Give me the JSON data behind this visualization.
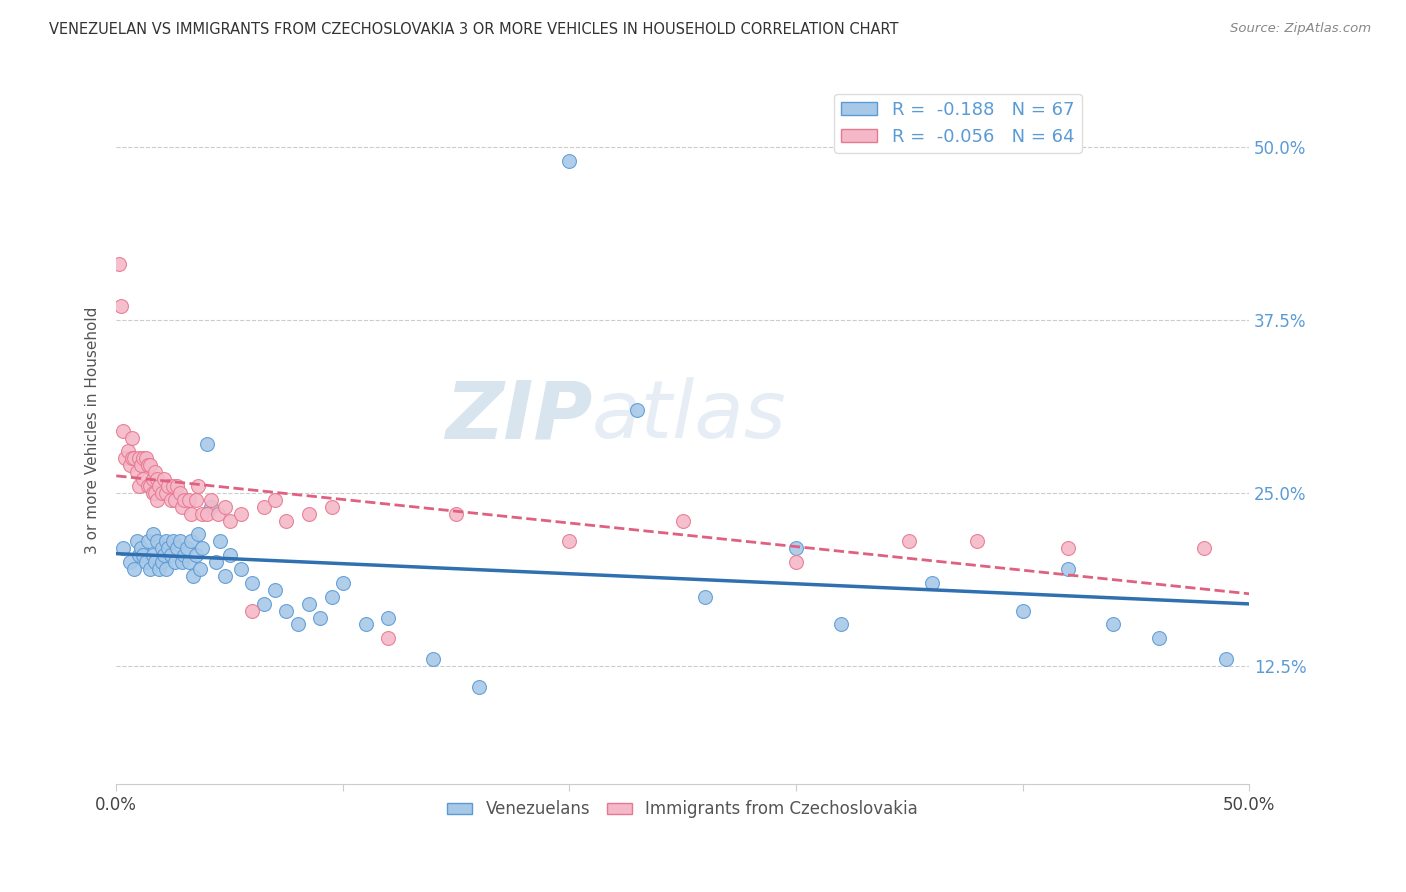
{
  "title": "VENEZUELAN VS IMMIGRANTS FROM CZECHOSLOVAKIA 3 OR MORE VEHICLES IN HOUSEHOLD CORRELATION CHART",
  "source": "Source: ZipAtlas.com",
  "ylabel": "3 or more Vehicles in Household",
  "ytick_labels": [
    "12.5%",
    "25.0%",
    "37.5%",
    "50.0%"
  ],
  "ytick_values": [
    0.125,
    0.25,
    0.375,
    0.5
  ],
  "xlim": [
    0.0,
    0.5
  ],
  "ylim": [
    0.04,
    0.55
  ],
  "legend_blue_R": "R =  -0.188",
  "legend_blue_N": "N = 67",
  "legend_pink_R": "R =  -0.056",
  "legend_pink_N": "N = 64",
  "legend_blue_label": "Venezuelans",
  "legend_pink_label": "Immigrants from Czechoslovakia",
  "blue_color": "#a8c8e8",
  "pink_color": "#f4b8c8",
  "blue_edge_color": "#5b9bd5",
  "pink_edge_color": "#e87890",
  "blue_line_color": "#3070b0",
  "pink_line_color": "#e06080",
  "watermark_zip": "ZIP",
  "watermark_atlas": "atlas",
  "venezuelan_x": [
    0.003,
    0.006,
    0.008,
    0.009,
    0.01,
    0.011,
    0.012,
    0.013,
    0.014,
    0.015,
    0.016,
    0.016,
    0.017,
    0.018,
    0.019,
    0.02,
    0.02,
    0.021,
    0.022,
    0.022,
    0.023,
    0.024,
    0.025,
    0.026,
    0.027,
    0.028,
    0.029,
    0.03,
    0.031,
    0.032,
    0.033,
    0.034,
    0.035,
    0.036,
    0.037,
    0.038,
    0.04,
    0.042,
    0.044,
    0.046,
    0.048,
    0.05,
    0.055,
    0.06,
    0.065,
    0.07,
    0.075,
    0.08,
    0.085,
    0.09,
    0.095,
    0.1,
    0.11,
    0.12,
    0.14,
    0.16,
    0.2,
    0.23,
    0.26,
    0.3,
    0.32,
    0.36,
    0.4,
    0.42,
    0.44,
    0.46,
    0.49
  ],
  "venezuelan_y": [
    0.21,
    0.2,
    0.195,
    0.215,
    0.205,
    0.21,
    0.205,
    0.2,
    0.215,
    0.195,
    0.205,
    0.22,
    0.2,
    0.215,
    0.195,
    0.21,
    0.2,
    0.205,
    0.215,
    0.195,
    0.21,
    0.205,
    0.215,
    0.2,
    0.21,
    0.215,
    0.2,
    0.205,
    0.21,
    0.2,
    0.215,
    0.19,
    0.205,
    0.22,
    0.195,
    0.21,
    0.285,
    0.24,
    0.2,
    0.215,
    0.19,
    0.205,
    0.195,
    0.185,
    0.17,
    0.18,
    0.165,
    0.155,
    0.17,
    0.16,
    0.175,
    0.185,
    0.155,
    0.16,
    0.13,
    0.11,
    0.49,
    0.31,
    0.175,
    0.21,
    0.155,
    0.185,
    0.165,
    0.195,
    0.155,
    0.145,
    0.13
  ],
  "czechoslovakia_x": [
    0.001,
    0.002,
    0.003,
    0.004,
    0.005,
    0.006,
    0.007,
    0.007,
    0.008,
    0.009,
    0.01,
    0.01,
    0.011,
    0.012,
    0.012,
    0.013,
    0.014,
    0.014,
    0.015,
    0.015,
    0.016,
    0.016,
    0.017,
    0.017,
    0.018,
    0.018,
    0.019,
    0.02,
    0.021,
    0.022,
    0.023,
    0.024,
    0.025,
    0.026,
    0.027,
    0.028,
    0.029,
    0.03,
    0.032,
    0.033,
    0.035,
    0.036,
    0.038,
    0.04,
    0.042,
    0.045,
    0.048,
    0.05,
    0.055,
    0.06,
    0.065,
    0.07,
    0.075,
    0.085,
    0.095,
    0.12,
    0.15,
    0.2,
    0.25,
    0.3,
    0.35,
    0.38,
    0.42,
    0.48
  ],
  "czechoslovakia_y": [
    0.415,
    0.385,
    0.295,
    0.275,
    0.28,
    0.27,
    0.29,
    0.275,
    0.275,
    0.265,
    0.275,
    0.255,
    0.27,
    0.275,
    0.26,
    0.275,
    0.27,
    0.255,
    0.27,
    0.255,
    0.26,
    0.25,
    0.265,
    0.25,
    0.26,
    0.245,
    0.255,
    0.25,
    0.26,
    0.25,
    0.255,
    0.245,
    0.255,
    0.245,
    0.255,
    0.25,
    0.24,
    0.245,
    0.245,
    0.235,
    0.245,
    0.255,
    0.235,
    0.235,
    0.245,
    0.235,
    0.24,
    0.23,
    0.235,
    0.165,
    0.24,
    0.245,
    0.23,
    0.235,
    0.24,
    0.145,
    0.235,
    0.215,
    0.23,
    0.2,
    0.215,
    0.215,
    0.21,
    0.21
  ]
}
